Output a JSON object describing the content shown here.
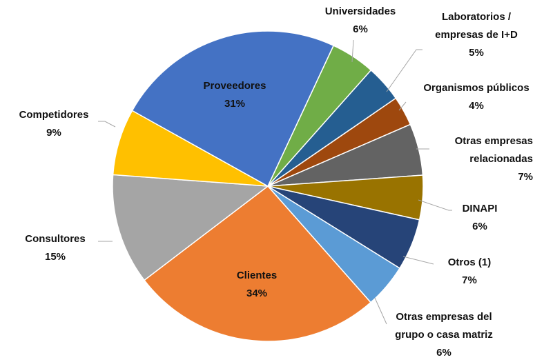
{
  "chart_data": {
    "type": "pie",
    "categories": [
      "Universidades",
      "Laboratorios /\nempresas de I+D",
      "Organismos públicos",
      "Otras empresas\nrelacionadas",
      "DINAPI",
      "Otros (1)",
      "Otras empresas del\ngrupo o casa matriz",
      "Clientes",
      "Consultores",
      "Competidores",
      "Proveedores"
    ],
    "values": [
      6,
      5,
      4,
      7,
      6,
      7,
      6,
      34,
      15,
      9,
      31
    ],
    "value_labels": [
      "6%",
      "5%",
      "4%",
      "7%",
      "6%",
      "7%",
      "6%",
      "34%",
      "15%",
      "9%",
      "31%"
    ],
    "colors": [
      "#70ad47",
      "#255e91",
      "#9e480e",
      "#636363",
      "#997300",
      "#264478",
      "#5b9bd5",
      "#ed7d31",
      "#a5a5a5",
      "#ffc000",
      "#4472c4"
    ]
  }
}
